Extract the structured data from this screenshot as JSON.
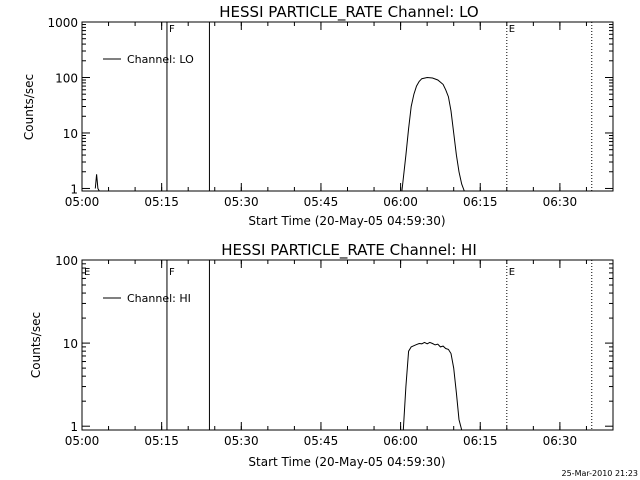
{
  "footer": {
    "timestamp": "25-Mar-2010 21:23"
  },
  "chart_data": [
    {
      "type": "line",
      "title": "HESSI PARTICLE_RATE Channel: LO",
      "xlabel": "Start Time (20-May-05 04:59:30)",
      "ylabel": "Counts/sec",
      "yscale": "log",
      "xlim": [
        "05:00",
        "06:40"
      ],
      "ylim": [
        0.9,
        1000
      ],
      "x_ticks": [
        "05:00",
        "05:15",
        "05:30",
        "05:45",
        "06:00",
        "06:15",
        "06:30"
      ],
      "y_ticks": [
        "1",
        "10",
        "100",
        "1000"
      ],
      "legend": {
        "placement": "top-left",
        "entries": [
          "Channel: LO"
        ]
      },
      "flags": [
        {
          "label": "F",
          "time": "05:16",
          "style": "solid"
        },
        {
          "label": "",
          "time": "05:24",
          "style": "solid"
        },
        {
          "label": "E",
          "time": "06:20",
          "style": "dotted"
        },
        {
          "label": "",
          "time": "06:36",
          "style": "dotted"
        }
      ],
      "series": [
        {
          "name": "Channel: LO",
          "segments": [
            {
              "x": [
                "05:02:30",
                "05:02:45",
                "05:03:00",
                "05:03:15"
              ],
              "y": [
                1,
                1.8,
                1,
                0.9
              ]
            },
            {
              "x": [
                "06:00:15",
                "06:01:00",
                "06:01:30",
                "06:02:00",
                "06:02:30",
                "06:03:00",
                "06:03:30",
                "06:04:00",
                "06:05:00",
                "06:06:00",
                "06:07:00",
                "06:08:00",
                "06:08:30",
                "06:09:00",
                "06:09:30",
                "06:10:00",
                "06:10:30",
                "06:11:00",
                "06:11:30",
                "06:12:00"
              ],
              "y": [
                0.9,
                4,
                12,
                30,
                50,
                70,
                85,
                95,
                100,
                98,
                90,
                75,
                60,
                45,
                25,
                10,
                4,
                2,
                1.2,
                0.9
              ]
            }
          ]
        }
      ]
    },
    {
      "type": "line",
      "title": "HESSI PARTICLE_RATE Channel: HI",
      "xlabel": "Start Time (20-May-05 04:59:30)",
      "ylabel": "Counts/sec",
      "yscale": "log",
      "xlim": [
        "05:00",
        "06:40"
      ],
      "ylim": [
        0.9,
        100
      ],
      "x_ticks": [
        "05:00",
        "05:15",
        "05:30",
        "05:45",
        "06:00",
        "06:15",
        "06:30"
      ],
      "y_ticks": [
        "1",
        "10",
        "100"
      ],
      "legend": {
        "placement": "top-left",
        "entries": [
          "Channel: HI"
        ]
      },
      "flags": [
        {
          "label": "E",
          "time": "05:00",
          "style": "none"
        },
        {
          "label": "F",
          "time": "05:16",
          "style": "solid"
        },
        {
          "label": "",
          "time": "05:24",
          "style": "solid"
        },
        {
          "label": "E",
          "time": "06:20",
          "style": "dotted"
        },
        {
          "label": "",
          "time": "06:36",
          "style": "dotted"
        }
      ],
      "series": [
        {
          "name": "Channel: HI",
          "segments": [
            {
              "x": [
                "06:00:30",
                "06:01:00",
                "06:01:30",
                "06:02:00",
                "06:02:30",
                "06:03:00",
                "06:03:30",
                "06:04:00",
                "06:04:30",
                "06:05:00",
                "06:05:30",
                "06:06:00",
                "06:06:30",
                "06:07:00",
                "06:07:30",
                "06:08:00",
                "06:08:30",
                "06:09:00",
                "06:09:30",
                "06:10:00",
                "06:10:30",
                "06:11:00",
                "06:11:30"
              ],
              "y": [
                0.9,
                3,
                8,
                9,
                9.3,
                9.6,
                9.9,
                9.8,
                10.2,
                9.8,
                10.2,
                9.9,
                9.5,
                9.7,
                9,
                9.2,
                8.6,
                8.4,
                7.5,
                5,
                2.5,
                1.2,
                0.9
              ]
            }
          ]
        }
      ]
    }
  ]
}
